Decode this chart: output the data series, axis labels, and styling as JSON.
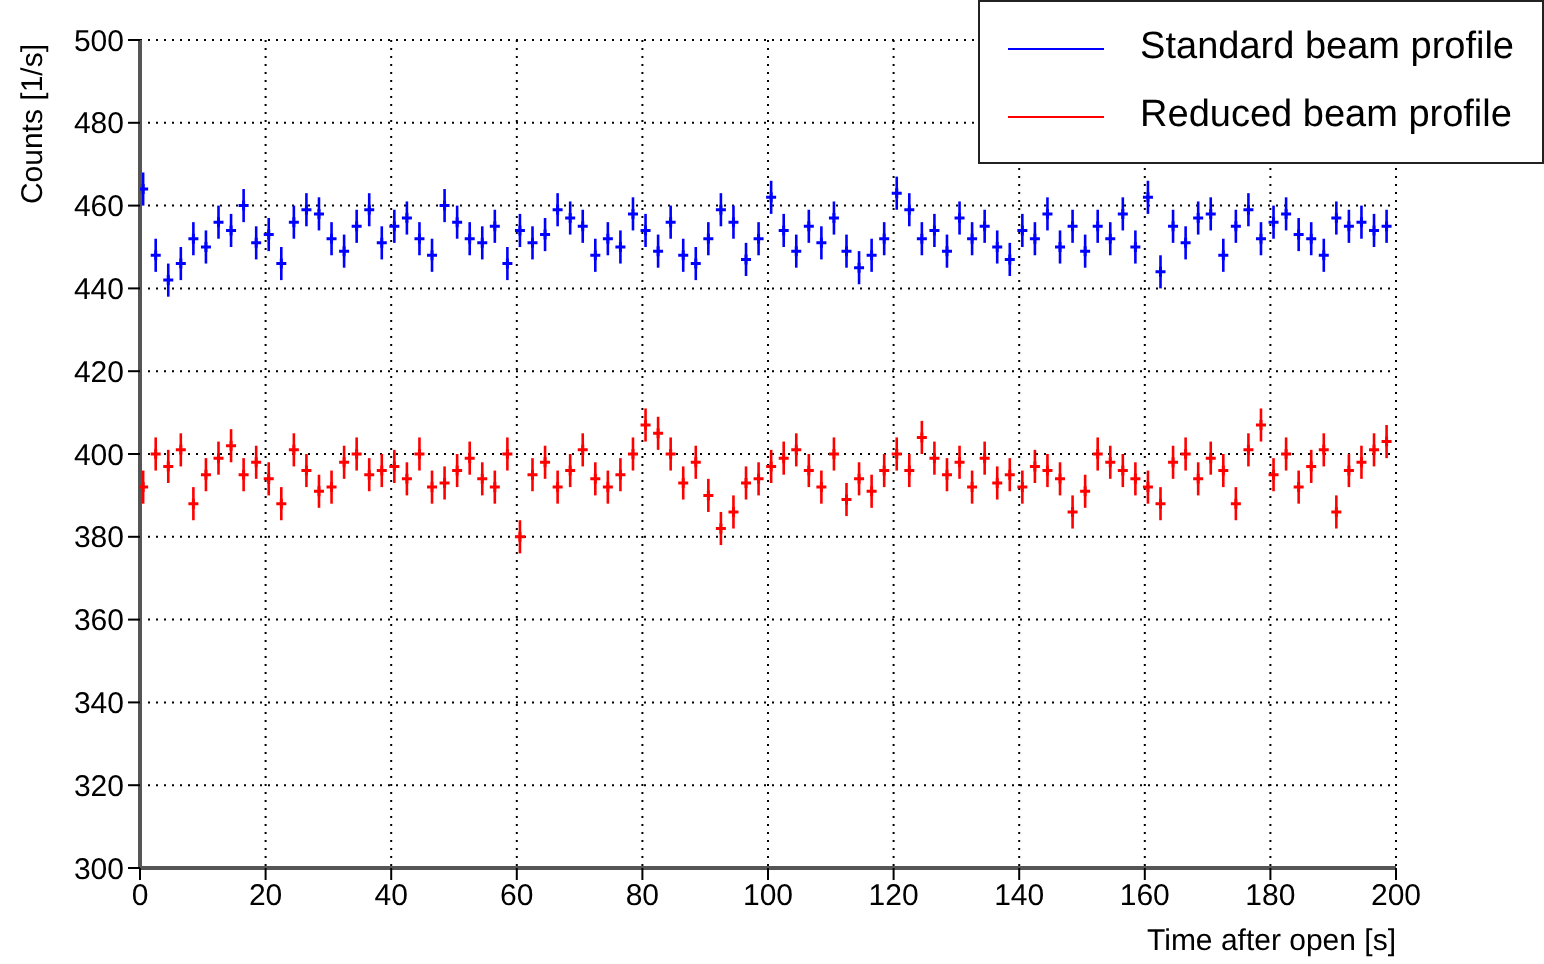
{
  "chart_data": {
    "type": "scatter",
    "xlabel": "Time after open [s]",
    "ylabel": "Counts [1/s]",
    "x": [
      0.5,
      2.5,
      4.5,
      6.5,
      8.5,
      10.5,
      12.5,
      14.5,
      16.5,
      18.5,
      20.5,
      22.5,
      24.5,
      26.5,
      28.5,
      30.5,
      32.5,
      34.5,
      36.5,
      38.5,
      40.5,
      42.5,
      44.5,
      46.5,
      48.5,
      50.5,
      52.5,
      54.5,
      56.5,
      58.5,
      60.5,
      62.5,
      64.5,
      66.5,
      68.5,
      70.5,
      72.5,
      74.5,
      76.5,
      78.5,
      80.5,
      82.5,
      84.5,
      86.5,
      88.5,
      90.5,
      92.5,
      94.5,
      96.5,
      98.5,
      100.5,
      102.5,
      104.5,
      106.5,
      108.5,
      110.5,
      112.5,
      114.5,
      116.5,
      118.5,
      120.5,
      122.5,
      124.5,
      126.5,
      128.5,
      130.5,
      132.5,
      134.5,
      136.5,
      138.5,
      140.5,
      142.5,
      144.5,
      146.5,
      148.5,
      150.5,
      152.5,
      154.5,
      156.5,
      158.5,
      160.5,
      162.5,
      164.5,
      166.5,
      168.5,
      170.5,
      172.5,
      174.5,
      176.5,
      178.5,
      180.5,
      182.5,
      184.5,
      186.5,
      188.5,
      190.5,
      192.5,
      194.5,
      196.5,
      198.5
    ],
    "series": [
      {
        "name": "Standard beam profile",
        "color": "#0000ff",
        "values": [
          464,
          448,
          442,
          446,
          452,
          450,
          456,
          454,
          460,
          451,
          453,
          446,
          456,
          459,
          458,
          452,
          449,
          455,
          459,
          451,
          455,
          457,
          452,
          448,
          460,
          456,
          452,
          451,
          455,
          446,
          454,
          451,
          453,
          459,
          457,
          455,
          448,
          452,
          450,
          458,
          454,
          449,
          456,
          448,
          446,
          452,
          459,
          456,
          447,
          452,
          462,
          454,
          449,
          455,
          451,
          457,
          449,
          445,
          448,
          452,
          463,
          459,
          452,
          454,
          449,
          457,
          452,
          455,
          450,
          447,
          454,
          452,
          458,
          450,
          455,
          449,
          455,
          452,
          458,
          450,
          462,
          444,
          455,
          451,
          457,
          458,
          448,
          455,
          459,
          452,
          456,
          458,
          453,
          452,
          448,
          457,
          455,
          456,
          454,
          455
        ],
        "errors": [
          4,
          4,
          4,
          4,
          4,
          4,
          4,
          4,
          4,
          4,
          4,
          4,
          4,
          4,
          4,
          4,
          4,
          4,
          4,
          4,
          4,
          4,
          4,
          4,
          4,
          4,
          4,
          4,
          4,
          4,
          4,
          4,
          4,
          4,
          4,
          4,
          4,
          4,
          4,
          4,
          4,
          4,
          4,
          4,
          4,
          4,
          4,
          4,
          4,
          4,
          4,
          4,
          4,
          4,
          4,
          4,
          4,
          4,
          4,
          4,
          4,
          4,
          4,
          4,
          4,
          4,
          4,
          4,
          4,
          4,
          4,
          4,
          4,
          4,
          4,
          4,
          4,
          4,
          4,
          4,
          4,
          4,
          4,
          4,
          4,
          4,
          4,
          4,
          4,
          4,
          4,
          4,
          4,
          4,
          4,
          4,
          4,
          4,
          4,
          4
        ]
      },
      {
        "name": "Reduced beam profile",
        "color": "#ff0000",
        "values": [
          392,
          400,
          397,
          401,
          388,
          395,
          399,
          402,
          395,
          398,
          394,
          388,
          401,
          396,
          391,
          392,
          398,
          400,
          395,
          396,
          397,
          394,
          400,
          392,
          393,
          396,
          399,
          394,
          392,
          400,
          380,
          395,
          398,
          392,
          396,
          401,
          394,
          392,
          395,
          400,
          407,
          405,
          400,
          393,
          398,
          390,
          382,
          386,
          393,
          394,
          397,
          399,
          401,
          396,
          392,
          400,
          389,
          394,
          391,
          396,
          400,
          396,
          404,
          399,
          395,
          398,
          392,
          399,
          393,
          395,
          392,
          397,
          396,
          394,
          386,
          391,
          400,
          398,
          396,
          394,
          392,
          388,
          398,
          400,
          394,
          399,
          396,
          388,
          401,
          407,
          395,
          400,
          392,
          397,
          401,
          386,
          396,
          398,
          401,
          403
        ],
        "errors": [
          4,
          4,
          4,
          4,
          4,
          4,
          4,
          4,
          4,
          4,
          4,
          4,
          4,
          4,
          4,
          4,
          4,
          4,
          4,
          4,
          4,
          4,
          4,
          4,
          4,
          4,
          4,
          4,
          4,
          4,
          4,
          4,
          4,
          4,
          4,
          4,
          4,
          4,
          4,
          4,
          4,
          4,
          4,
          4,
          4,
          4,
          4,
          4,
          4,
          4,
          4,
          4,
          4,
          4,
          4,
          4,
          4,
          4,
          4,
          4,
          4,
          4,
          4,
          4,
          4,
          4,
          4,
          4,
          4,
          4,
          4,
          4,
          4,
          4,
          4,
          4,
          4,
          4,
          4,
          4,
          4,
          4,
          4,
          4,
          4,
          4,
          4,
          4,
          4,
          4,
          4,
          4,
          4,
          4,
          4,
          4,
          4,
          4,
          4,
          4
        ]
      }
    ],
    "marker": "cross",
    "xlim": [
      0,
      200
    ],
    "xticks": [
      0,
      20,
      40,
      60,
      80,
      100,
      120,
      140,
      160,
      180,
      200
    ],
    "ylim": [
      300,
      500
    ],
    "yticks": [
      300,
      320,
      340,
      360,
      380,
      400,
      420,
      440,
      460,
      480,
      500
    ],
    "grid": true,
    "legend": "top right"
  }
}
